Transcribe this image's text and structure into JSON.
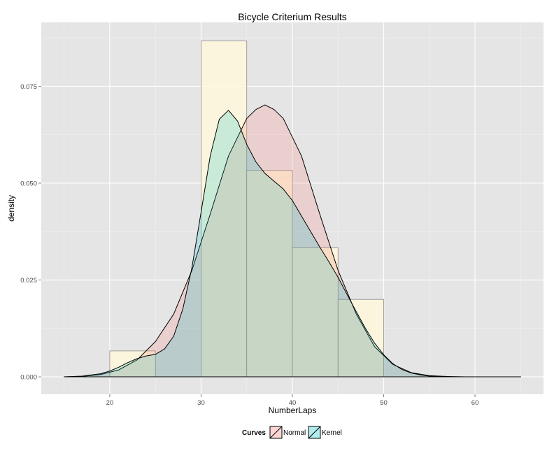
{
  "chart_data": {
    "type": "histogram-density",
    "title": "Bicycle Criterium Results",
    "xlabel": "NumberLaps",
    "ylabel": "density",
    "xlim": [
      12.5,
      67.5
    ],
    "ylim": [
      -0.0045,
      0.0915
    ],
    "x_ticks": [
      20,
      30,
      40,
      50,
      60
    ],
    "y_ticks": [
      0.0,
      0.025,
      0.05,
      0.075
    ],
    "y_tick_labels": [
      "0.000",
      "0.025",
      "0.050",
      "0.075"
    ],
    "grid": true,
    "background": "#e5e5e5",
    "histogram": {
      "fill": "#fff8dc",
      "bins": [
        {
          "x0": 20,
          "x1": 25,
          "density": 0.0067
        },
        {
          "x0": 25,
          "x1": 30,
          "density": 0.0
        },
        {
          "x0": 30,
          "x1": 35,
          "density": 0.0867
        },
        {
          "x0": 35,
          "x1": 40,
          "density": 0.0533
        },
        {
          "x0": 40,
          "x1": 45,
          "density": 0.0333
        },
        {
          "x0": 45,
          "x1": 50,
          "density": 0.02
        }
      ]
    },
    "series": [
      {
        "name": "Normal",
        "color": "#f8766d",
        "x": [
          15,
          17,
          19,
          21,
          23,
          25,
          27,
          29,
          31,
          33,
          35,
          36,
          37,
          38,
          39,
          41,
          43,
          45,
          47,
          49,
          51,
          53,
          55,
          57,
          59,
          61,
          63,
          65
        ],
        "y": [
          0.0,
          0.0001,
          0.0006,
          0.0018,
          0.0044,
          0.0091,
          0.0162,
          0.0275,
          0.042,
          0.057,
          0.0667,
          0.069,
          0.0702,
          0.069,
          0.0667,
          0.057,
          0.042,
          0.0275,
          0.0162,
          0.0078,
          0.0032,
          0.0011,
          0.0003,
          0.0001,
          0.0,
          0.0,
          0.0,
          0.0
        ]
      },
      {
        "name": "Kernel",
        "color": "#00bfc4",
        "x": [
          15,
          17,
          19,
          20,
          21,
          22,
          23,
          24,
          25,
          26,
          27,
          28,
          29,
          30,
          31,
          32,
          33,
          34,
          35,
          36,
          37,
          38,
          39,
          40,
          41,
          42,
          43,
          44,
          45,
          46,
          47,
          48,
          49,
          50,
          51,
          52,
          53,
          54,
          55,
          56,
          57,
          58,
          60,
          62,
          65
        ],
        "y": [
          0.0,
          0.0002,
          0.0008,
          0.0015,
          0.0025,
          0.0037,
          0.0047,
          0.0054,
          0.0058,
          0.0072,
          0.0105,
          0.0175,
          0.0282,
          0.0425,
          0.057,
          0.0665,
          0.0688,
          0.066,
          0.06,
          0.0555,
          0.0525,
          0.0505,
          0.0485,
          0.0455,
          0.0415,
          0.0375,
          0.0335,
          0.0297,
          0.0257,
          0.0212,
          0.0168,
          0.0125,
          0.0087,
          0.0057,
          0.0034,
          0.0019,
          0.001,
          0.0005,
          0.0002,
          0.0001,
          0.0,
          0.0,
          0.0,
          0.0,
          0.0
        ]
      }
    ],
    "legend": {
      "title": "Curves",
      "placement": "bottom",
      "items": [
        {
          "label": "Normal",
          "color": "#f8766d"
        },
        {
          "label": "Kernel",
          "color": "#00bfc4"
        }
      ]
    }
  }
}
